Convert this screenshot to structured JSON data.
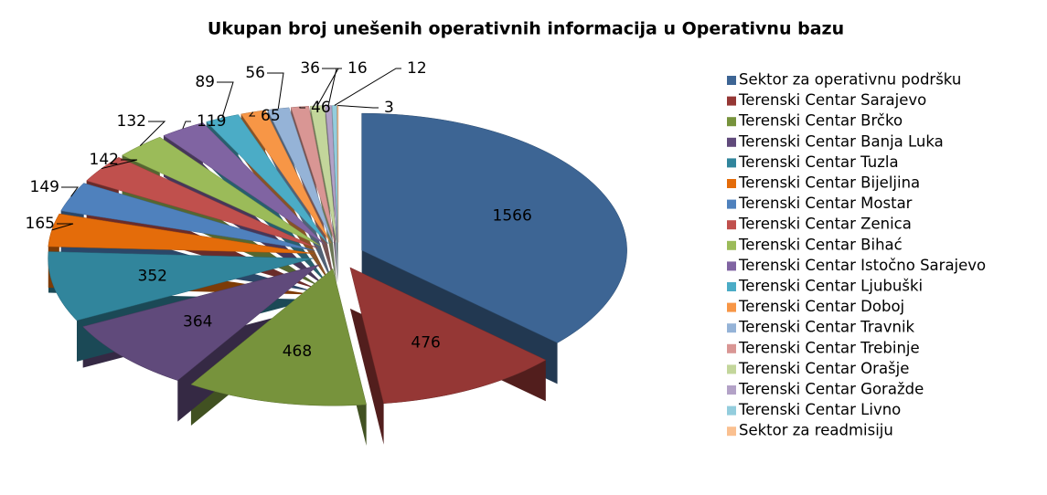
{
  "chart_data": {
    "type": "pie",
    "title": "Ukupan broj unešenih operativnih informacija u Operativnu bazu",
    "categories": [
      "Sektor za operativnu podršku",
      "Terenski Centar Sarajevo",
      "Terenski Centar Brčko",
      "Terenski Centar Banja Luka",
      "Terenski Centar Tuzla",
      "Terenski Centar Bijeljina",
      "Terenski Centar Mostar",
      "Terenski Centar Zenica",
      "Terenski Centar Bihać",
      "Terenski Centar Istočno Sarajevo",
      "Terenski Centar Ljubuški",
      "Terenski Centar Doboj",
      "Terenski Centar Travnik",
      "Terenski Centar Trebinje",
      "Terenski Centar Orašje",
      "Terenski Centar Goražde",
      "Terenski Centar Livno",
      "Sektor za readmisiju"
    ],
    "values": [
      1566,
      476,
      468,
      364,
      352,
      165,
      149,
      142,
      132,
      119,
      89,
      65,
      56,
      46,
      36,
      16,
      12,
      3
    ],
    "colors": [
      "#3d6594",
      "#953735",
      "#77933c",
      "#604a7b",
      "#31859c",
      "#e46c0a",
      "#4f81bd",
      "#c0504d",
      "#9bbb59",
      "#8064a2",
      "#4bacc6",
      "#f79646",
      "#95b3d7",
      "#d99694",
      "#c3d69b",
      "#b3a2c7",
      "#93cddd",
      "#fac090"
    ],
    "legend": "right"
  }
}
